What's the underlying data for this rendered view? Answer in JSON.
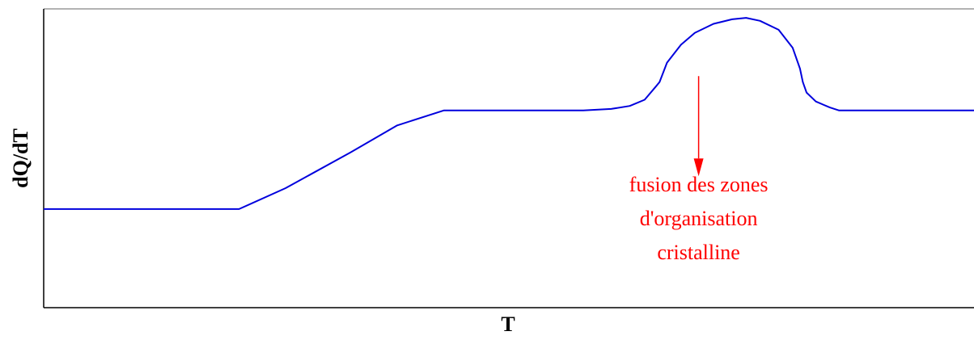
{
  "chart_data": {
    "type": "line",
    "title": "",
    "xlabel": "T",
    "ylabel": "dQ/dT",
    "xlim": [
      0,
      100
    ],
    "ylim": [
      0,
      100
    ],
    "grid": false,
    "legend": "none",
    "series": [
      {
        "values": [
          [
            0,
            33
          ],
          [
            21,
            33
          ],
          [
            26,
            40
          ],
          [
            33,
            52
          ],
          [
            38,
            61
          ],
          [
            43,
            66
          ],
          [
            58,
            66
          ],
          [
            61,
            66.5
          ],
          [
            63,
            67.5
          ],
          [
            64.6,
            69.6
          ],
          [
            65.8,
            74
          ],
          [
            66.2,
            75.5
          ],
          [
            67,
            82
          ],
          [
            68.5,
            88
          ],
          [
            70,
            92
          ],
          [
            72,
            95
          ],
          [
            74,
            96.5
          ],
          [
            75.5,
            97
          ],
          [
            77,
            96
          ],
          [
            79,
            93
          ],
          [
            80.5,
            87
          ],
          [
            81.3,
            80
          ],
          [
            81.6,
            75.5
          ],
          [
            82,
            72
          ],
          [
            83,
            69
          ],
          [
            84.5,
            67
          ],
          [
            85.5,
            66
          ],
          [
            100,
            66
          ]
        ]
      }
    ],
    "annotations": [
      {
        "lines": [
          "fusion des zones",
          "d'organisation",
          "cristalline"
        ],
        "arrow_from": [
          70.4,
          77.5
        ],
        "arrow_to": [
          70.4,
          44
        ]
      }
    ],
    "colors": {
      "line": "#0000dd",
      "annotation": "#ff0000",
      "axes": "#000000",
      "top_border": "#999999"
    }
  }
}
